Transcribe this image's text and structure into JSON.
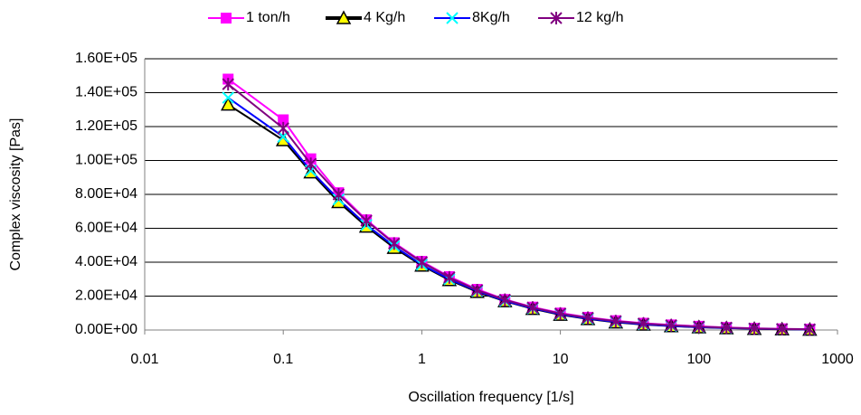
{
  "chart_data": {
    "type": "line",
    "x_label": "Oscillation  frequency [1/s]",
    "y_label": "Complex viscosity [Pas]",
    "x": [
      0.04,
      0.1,
      0.158,
      0.251,
      0.398,
      0.631,
      1,
      1.58,
      2.51,
      3.98,
      6.31,
      10,
      15.8,
      25.1,
      39.8,
      63.1,
      100,
      158,
      251,
      398,
      631
    ],
    "xlim": [
      0.01,
      1000
    ],
    "xticks": [
      0.01,
      0.1,
      1,
      10,
      100,
      1000
    ],
    "xscale": "log",
    "ylim": [
      0,
      160000
    ],
    "yticks": [
      {
        "value": 0,
        "label": "0.00E+00"
      },
      {
        "value": 20000,
        "label": "2.00E+04"
      },
      {
        "value": 40000,
        "label": "4.00E+04"
      },
      {
        "value": 60000,
        "label": "6.00E+04"
      },
      {
        "value": 80000,
        "label": "8.00E+04"
      },
      {
        "value": 100000,
        "label": "1.00E+05"
      },
      {
        "value": 120000,
        "label": "1.20E+05"
      },
      {
        "value": 140000,
        "label": "1.40E+05"
      },
      {
        "value": 160000,
        "label": "1.60E+05"
      }
    ],
    "grid": true,
    "legend": "top",
    "series": [
      {
        "name": "1 ton/h",
        "color": "#ff00ff",
        "marker": "square",
        "marker_color": "#ff00ff",
        "values": [
          148000,
          124000,
          101000,
          81000,
          65000,
          51500,
          40500,
          31500,
          24000,
          18000,
          13500,
          10000,
          7500,
          5500,
          4000,
          3000,
          2200,
          1500,
          1000,
          700,
          500
        ]
      },
      {
        "name": "4 Kg/h",
        "color": "#000000",
        "marker": "triangle",
        "marker_color": "#ffff00",
        "values": [
          133000,
          112000,
          93000,
          75500,
          61000,
          48500,
          38000,
          29500,
          22500,
          17000,
          12500,
          9000,
          6500,
          4500,
          3200,
          2300,
          1600,
          1100,
          700,
          400,
          200
        ]
      },
      {
        "name": "8Kg/h",
        "color": "#0000ff",
        "marker": "x",
        "marker_color": "#00ffff",
        "values": [
          137000,
          114000,
          94000,
          77000,
          62000,
          49500,
          38500,
          30000,
          23000,
          17200,
          12800,
          9300,
          6700,
          4800,
          3400,
          2400,
          1700,
          1200,
          800,
          500,
          300
        ]
      },
      {
        "name": "12 kg/h",
        "color": "#800080",
        "marker": "star",
        "marker_color": "#800080",
        "values": [
          145000,
          119000,
          98000,
          80000,
          64500,
          51000,
          40000,
          31000,
          23500,
          17800,
          13200,
          9700,
          7200,
          5200,
          3800,
          2800,
          2000,
          1400,
          900,
          600,
          400
        ]
      }
    ]
  }
}
